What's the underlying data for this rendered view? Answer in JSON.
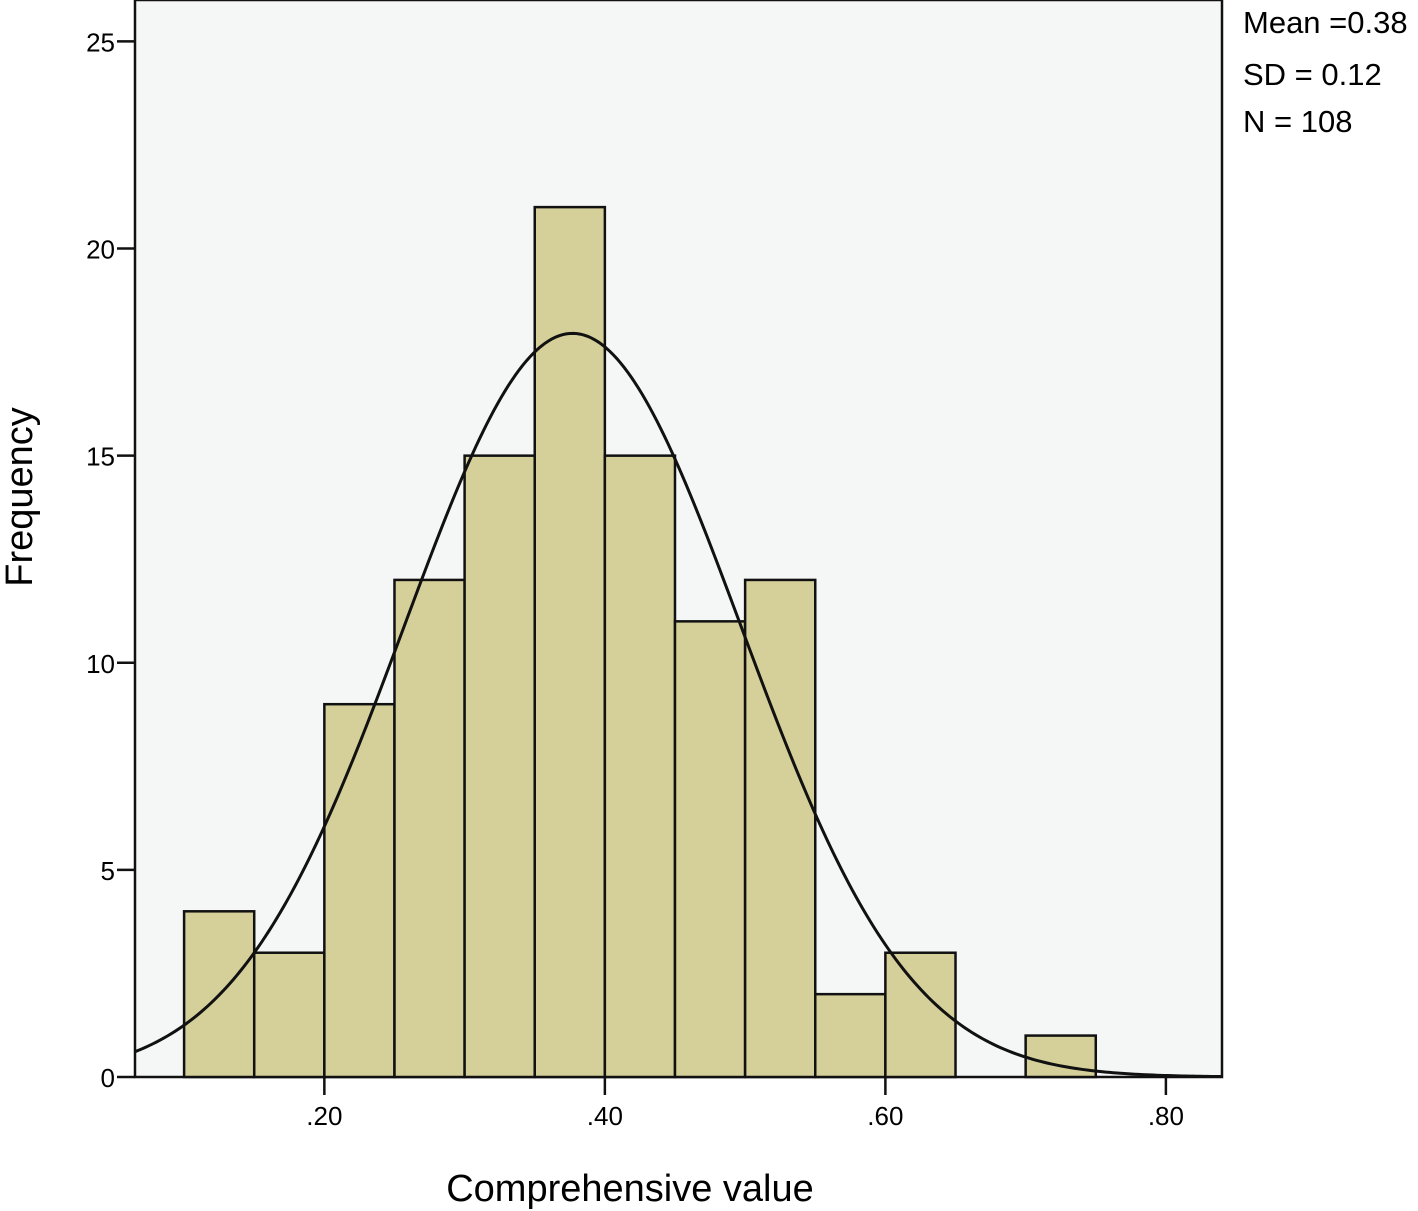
{
  "chart_data": {
    "type": "bar",
    "subtype": "histogram",
    "xlabel": "Comprehensive value",
    "ylabel": "Frequency",
    "xlim": [
      0.065,
      0.84
    ],
    "ylim": [
      0,
      26
    ],
    "x_ticks": [
      {
        "value": 0.2,
        "label": ".20"
      },
      {
        "value": 0.4,
        "label": ".40"
      },
      {
        "value": 0.6,
        "label": ".60"
      },
      {
        "value": 0.8,
        "label": ".80"
      }
    ],
    "y_ticks": [
      {
        "value": 0,
        "label": "0"
      },
      {
        "value": 5,
        "label": "5"
      },
      {
        "value": 10,
        "label": "10"
      },
      {
        "value": 15,
        "label": "15"
      },
      {
        "value": 20,
        "label": "20"
      },
      {
        "value": 25,
        "label": "25"
      }
    ],
    "bins": [
      {
        "start": 0.1,
        "end": 0.15,
        "count": 4
      },
      {
        "start": 0.15,
        "end": 0.2,
        "count": 3
      },
      {
        "start": 0.2,
        "end": 0.25,
        "count": 9
      },
      {
        "start": 0.25,
        "end": 0.3,
        "count": 12
      },
      {
        "start": 0.3,
        "end": 0.35,
        "count": 15
      },
      {
        "start": 0.35,
        "end": 0.4,
        "count": 21
      },
      {
        "start": 0.4,
        "end": 0.45,
        "count": 15
      },
      {
        "start": 0.45,
        "end": 0.5,
        "count": 11
      },
      {
        "start": 0.5,
        "end": 0.55,
        "count": 12
      },
      {
        "start": 0.55,
        "end": 0.6,
        "count": 2
      },
      {
        "start": 0.6,
        "end": 0.65,
        "count": 3
      },
      {
        "start": 0.65,
        "end": 0.7,
        "count": 0
      },
      {
        "start": 0.7,
        "end": 0.75,
        "count": 1
      }
    ],
    "normal_curve": {
      "mean": 0.377,
      "sd": 0.12,
      "n": 108,
      "bin_width": 0.05
    },
    "stats": {
      "mean_label": "Mean =0.38",
      "sd_label": "SD = 0.12",
      "n_label": "N = 108"
    },
    "colors": {
      "plot_background": "#f5f7f6",
      "bar_fill": "#d5cf9a",
      "bar_stroke": "#111111",
      "curve": "#111111",
      "axis": "#111111"
    }
  }
}
